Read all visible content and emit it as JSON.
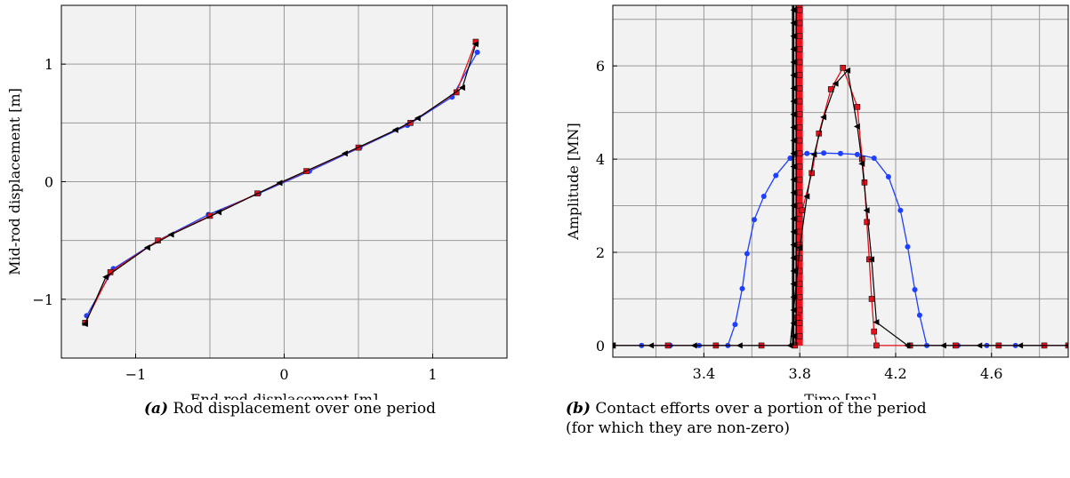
{
  "chart_data": [
    {
      "type": "line",
      "xlabel": "End-rod displacement [m]",
      "ylabel": "Mid-rod displacement [m]",
      "xlim": [
        -1.5,
        1.5
      ],
      "ylim": [
        -1.5,
        1.5
      ],
      "xticks": [
        -1,
        0,
        1
      ],
      "yticks": [
        -1,
        0,
        1
      ],
      "xtick_labels": [
        "−1",
        "0",
        "1"
      ],
      "ytick_labels": [
        "−1",
        "0",
        "1"
      ],
      "grid": true,
      "caption_tag": "(a)",
      "caption": "Rod displacement over one period",
      "series": [
        {
          "color": "#1f3fff",
          "marker": "circle",
          "x": [
            -1.33,
            -1.15,
            -0.85,
            -0.51,
            -0.17,
            0.17,
            0.51,
            0.83,
            1.13,
            1.3
          ],
          "y": [
            -1.14,
            -0.74,
            -0.5,
            -0.28,
            -0.1,
            0.09,
            0.29,
            0.48,
            0.72,
            1.1
          ]
        },
        {
          "color": "#e8101c",
          "marker": "square",
          "x": [
            -1.34,
            -1.17,
            -0.85,
            -0.5,
            -0.18,
            0.15,
            0.5,
            0.85,
            1.16,
            1.29
          ],
          "y": [
            -1.2,
            -0.77,
            -0.5,
            -0.29,
            -0.1,
            0.09,
            0.29,
            0.5,
            0.76,
            1.19
          ]
        },
        {
          "color": "#000000",
          "marker": "triangle-left",
          "x": [
            -1.34,
            -1.2,
            -0.92,
            -0.76,
            -0.44,
            -0.03,
            0.41,
            0.75,
            0.9,
            1.2,
            1.29
          ],
          "y": [
            -1.21,
            -0.81,
            -0.56,
            -0.45,
            -0.26,
            -0.01,
            0.24,
            0.44,
            0.54,
            0.8,
            1.17
          ]
        }
      ]
    },
    {
      "type": "line",
      "xlabel": "Time [ms]",
      "ylabel": "Amplitude [MN]",
      "xlim": [
        3.02,
        4.92
      ],
      "ylim": [
        -0.25,
        7.3
      ],
      "xticks": [
        3.4,
        3.8,
        4.2,
        4.6
      ],
      "yticks": [
        0,
        2,
        4,
        6
      ],
      "xtick_labels": [
        "3.4",
        "3.8",
        "4.2",
        "4.6"
      ],
      "ytick_labels": [
        "0",
        "2",
        "4",
        "6"
      ],
      "grid": true,
      "caption_tag": "(b)",
      "caption_line1": "Contact efforts over a portion of the period",
      "caption_line2": "(for which they are non-zero)",
      "series": [
        {
          "color": "#1f3fff",
          "marker": "circle",
          "x": [
            3.02,
            3.14,
            3.26,
            3.38,
            3.5,
            3.53,
            3.56,
            3.58,
            3.61,
            3.65,
            3.7,
            3.76,
            3.83,
            3.9,
            3.97,
            4.04,
            4.11,
            4.17,
            4.22,
            4.25,
            4.28,
            4.3,
            4.33,
            4.46,
            4.58,
            4.7,
            4.82,
            4.92
          ],
          "y": [
            0,
            0,
            0,
            0,
            0,
            0.45,
            1.22,
            1.97,
            2.7,
            3.2,
            3.65,
            4.02,
            4.12,
            4.13,
            4.12,
            4.1,
            4.02,
            3.62,
            2.9,
            2.12,
            1.2,
            0.65,
            0,
            0,
            0,
            0,
            0,
            0
          ]
        },
        {
          "color": "#e8101c",
          "marker": "square",
          "x": [
            3.02,
            3.25,
            3.45,
            3.64,
            3.78,
            3.79,
            3.8,
            3.81,
            3.85,
            3.88,
            3.93,
            3.98,
            4.04,
            4.06,
            4.07,
            4.08,
            4.09,
            4.1,
            4.11,
            4.12,
            4.26,
            4.45,
            4.63,
            4.82,
            4.92
          ],
          "y": [
            0,
            0,
            0,
            0,
            0,
            0.6,
            2.1,
            2.9,
            3.7,
            4.55,
            5.5,
            5.96,
            5.12,
            4.0,
            3.5,
            2.65,
            1.85,
            1.0,
            0.3,
            0,
            0,
            0,
            0,
            0,
            0
          ],
          "spikes_x": [
            3.785,
            3.79,
            3.795,
            3.8,
            3.805,
            3.81
          ]
        },
        {
          "color": "#000000",
          "marker": "triangle-left",
          "x": [
            3.02,
            3.18,
            3.36,
            3.55,
            3.76,
            3.8,
            3.83,
            3.86,
            3.9,
            3.95,
            4.0,
            4.04,
            4.06,
            4.08,
            4.1,
            4.12,
            4.25,
            4.4,
            4.55,
            4.72,
            4.92
          ],
          "y": [
            0,
            0,
            0,
            0,
            0,
            2.1,
            3.2,
            4.1,
            4.9,
            5.62,
            5.9,
            4.7,
            3.9,
            2.9,
            1.85,
            0.5,
            0,
            0,
            0,
            0,
            0
          ],
          "spikes_x": [
            3.77,
            3.775,
            3.785
          ]
        }
      ]
    }
  ]
}
